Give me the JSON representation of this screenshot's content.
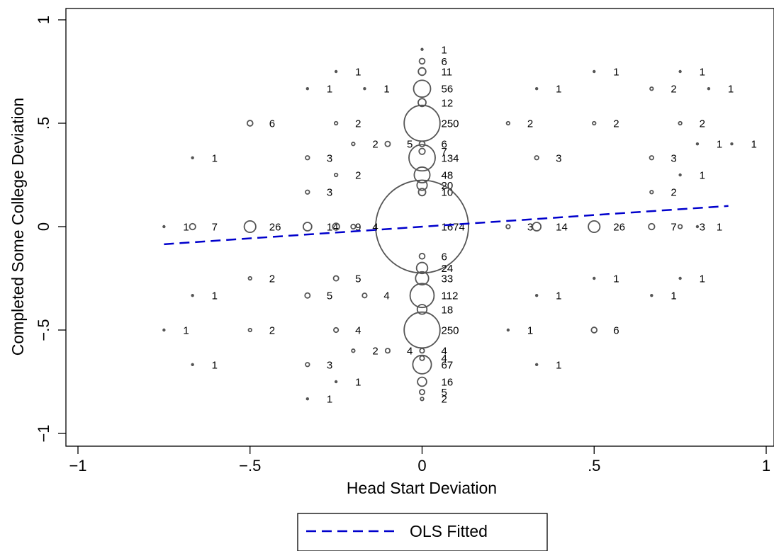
{
  "chart_data": {
    "type": "scatter",
    "xlabel": "Head Start Deviation",
    "ylabel": "Completed Some College Deviation",
    "xlim": [
      -1,
      1
    ],
    "ylim": [
      -1,
      1
    ],
    "x_ticks": [
      {
        "value": -1,
        "label": "−1"
      },
      {
        "value": -0.5,
        "label": "−.5"
      },
      {
        "value": 0,
        "label": "0"
      },
      {
        "value": 0.5,
        "label": ".5"
      },
      {
        "value": 1,
        "label": "1"
      }
    ],
    "y_ticks": [
      {
        "value": -1,
        "label": "−1"
      },
      {
        "value": -0.5,
        "label": "−.5"
      },
      {
        "value": 0,
        "label": "0"
      },
      {
        "value": 0.5,
        "label": ".5"
      },
      {
        "value": 1,
        "label": "1"
      }
    ],
    "grid": false,
    "legend": {
      "placement": "bottom-center",
      "entries": [
        {
          "label": "OLS Fitted",
          "style": "dashed",
          "color": "#0000cc"
        }
      ]
    },
    "marker_color": "#555555",
    "fit_line": {
      "name": "OLS Fitted",
      "color": "#0000cc",
      "x": [
        -0.75,
        0.89
      ],
      "y": [
        -0.085,
        0.1
      ]
    },
    "points": [
      {
        "x": 0,
        "y": 0.857,
        "n": 1,
        "label": "1"
      },
      {
        "x": 0,
        "y": 0.8,
        "n": 6,
        "label": "6"
      },
      {
        "x": 0,
        "y": 0.75,
        "n": 11,
        "label": "11"
      },
      {
        "x": 0,
        "y": 0.667,
        "n": 56,
        "label": "56"
      },
      {
        "x": 0,
        "y": 0.6,
        "n": 12,
        "label": "12"
      },
      {
        "x": 0,
        "y": 0.5,
        "n": 250,
        "label": "250"
      },
      {
        "x": 0,
        "y": 0.4,
        "n": 6,
        "label": "6"
      },
      {
        "x": 0,
        "y": 0.364,
        "n": 7,
        "label": "7"
      },
      {
        "x": 0,
        "y": 0.333,
        "n": 134,
        "label": "134"
      },
      {
        "x": 0,
        "y": 0.25,
        "n": 48,
        "label": "48"
      },
      {
        "x": 0,
        "y": 0.2,
        "n": 20,
        "label": "20"
      },
      {
        "x": 0,
        "y": 0.167,
        "n": 10,
        "label": "10"
      },
      {
        "x": 0,
        "y": 0,
        "n": 1674,
        "label": "1674"
      },
      {
        "x": 0,
        "y": -0.143,
        "n": 6,
        "label": "6"
      },
      {
        "x": 0,
        "y": -0.2,
        "n": 24,
        "label": "24"
      },
      {
        "x": 0,
        "y": -0.25,
        "n": 33,
        "label": "33"
      },
      {
        "x": 0,
        "y": -0.333,
        "n": 112,
        "label": "112"
      },
      {
        "x": 0,
        "y": -0.4,
        "n": 18,
        "label": "18"
      },
      {
        "x": 0,
        "y": -0.5,
        "n": 250,
        "label": "250"
      },
      {
        "x": 0,
        "y": -0.6,
        "n": 4,
        "label": "4"
      },
      {
        "x": 0,
        "y": -0.636,
        "n": 4,
        "label": "4"
      },
      {
        "x": 0,
        "y": -0.667,
        "n": 67,
        "label": "67"
      },
      {
        "x": 0,
        "y": -0.75,
        "n": 16,
        "label": "16"
      },
      {
        "x": 0,
        "y": -0.8,
        "n": 5,
        "label": "5"
      },
      {
        "x": 0,
        "y": -0.833,
        "n": 2,
        "label": "2"
      },
      {
        "x": -0.25,
        "y": 0.75,
        "n": 1,
        "label": "1"
      },
      {
        "x": -0.333,
        "y": 0.667,
        "n": 1,
        "label": "1"
      },
      {
        "x": -0.167,
        "y": 0.667,
        "n": 1,
        "label": "1"
      },
      {
        "x": -0.5,
        "y": 0.5,
        "n": 6,
        "label": "6"
      },
      {
        "x": -0.25,
        "y": 0.5,
        "n": 2,
        "label": "2"
      },
      {
        "x": -0.2,
        "y": 0.4,
        "n": 2,
        "label": "2"
      },
      {
        "x": -0.1,
        "y": 0.4,
        "n": 5,
        "label": "5"
      },
      {
        "x": -0.667,
        "y": 0.333,
        "n": 1,
        "label": "1"
      },
      {
        "x": -0.333,
        "y": 0.333,
        "n": 3,
        "label": "3"
      },
      {
        "x": -0.25,
        "y": 0.25,
        "n": 2,
        "label": "2"
      },
      {
        "x": -0.333,
        "y": 0.167,
        "n": 3,
        "label": "3"
      },
      {
        "x": -0.75,
        "y": 0,
        "n": 1,
        "label": "1"
      },
      {
        "x": -0.667,
        "y": 0,
        "n": 7,
        "label": "7"
      },
      {
        "x": -0.5,
        "y": 0,
        "n": 26,
        "label": "26"
      },
      {
        "x": -0.333,
        "y": 0,
        "n": 14,
        "label": "14"
      },
      {
        "x": -0.25,
        "y": 0,
        "n": 9,
        "label": "9"
      },
      {
        "x": -0.2,
        "y": 0,
        "n": 4,
        "label": "4"
      },
      {
        "x": -0.5,
        "y": -0.25,
        "n": 2,
        "label": "2"
      },
      {
        "x": -0.25,
        "y": -0.25,
        "n": 5,
        "label": "5"
      },
      {
        "x": -0.667,
        "y": -0.333,
        "n": 1,
        "label": "1"
      },
      {
        "x": -0.333,
        "y": -0.333,
        "n": 5,
        "label": "5"
      },
      {
        "x": -0.167,
        "y": -0.333,
        "n": 4,
        "label": "4"
      },
      {
        "x": -0.75,
        "y": -0.5,
        "n": 1,
        "label": "1"
      },
      {
        "x": -0.5,
        "y": -0.5,
        "n": 2,
        "label": "2"
      },
      {
        "x": -0.25,
        "y": -0.5,
        "n": 4,
        "label": "4"
      },
      {
        "x": -0.2,
        "y": -0.6,
        "n": 2,
        "label": "2"
      },
      {
        "x": -0.1,
        "y": -0.6,
        "n": 4,
        "label": "4"
      },
      {
        "x": -0.667,
        "y": -0.667,
        "n": 1,
        "label": "1"
      },
      {
        "x": -0.333,
        "y": -0.667,
        "n": 3,
        "label": "3"
      },
      {
        "x": -0.25,
        "y": -0.75,
        "n": 1,
        "label": "1"
      },
      {
        "x": -0.333,
        "y": -0.833,
        "n": 1,
        "label": "1"
      },
      {
        "x": 0.5,
        "y": 0.75,
        "n": 1,
        "label": "1"
      },
      {
        "x": 0.75,
        "y": 0.75,
        "n": 1,
        "label": "1"
      },
      {
        "x": 0.333,
        "y": 0.667,
        "n": 1,
        "label": "1"
      },
      {
        "x": 0.667,
        "y": 0.667,
        "n": 2,
        "label": "2"
      },
      {
        "x": 0.833,
        "y": 0.667,
        "n": 1,
        "label": "1"
      },
      {
        "x": 0.25,
        "y": 0.5,
        "n": 2,
        "label": "2"
      },
      {
        "x": 0.5,
        "y": 0.5,
        "n": 2,
        "label": "2"
      },
      {
        "x": 0.75,
        "y": 0.5,
        "n": 2,
        "label": "2"
      },
      {
        "x": 0.8,
        "y": 0.4,
        "n": 1,
        "label": "1"
      },
      {
        "x": 0.9,
        "y": 0.4,
        "n": 1,
        "label": "1"
      },
      {
        "x": 0.333,
        "y": 0.333,
        "n": 3,
        "label": "3"
      },
      {
        "x": 0.667,
        "y": 0.333,
        "n": 3,
        "label": "3"
      },
      {
        "x": 0.75,
        "y": 0.25,
        "n": 1,
        "label": "1"
      },
      {
        "x": 0.667,
        "y": 0.167,
        "n": 2,
        "label": "2"
      },
      {
        "x": 0.25,
        "y": 0,
        "n": 3,
        "label": "3"
      },
      {
        "x": 0.333,
        "y": 0,
        "n": 14,
        "label": "14"
      },
      {
        "x": 0.5,
        "y": 0,
        "n": 26,
        "label": "26"
      },
      {
        "x": 0.667,
        "y": 0,
        "n": 7,
        "label": "7"
      },
      {
        "x": 0.75,
        "y": 0,
        "n": 3,
        "label": "3"
      },
      {
        "x": 0.8,
        "y": 0,
        "n": 1,
        "label": "1"
      },
      {
        "x": 0.5,
        "y": -0.25,
        "n": 1,
        "label": "1"
      },
      {
        "x": 0.75,
        "y": -0.25,
        "n": 1,
        "label": "1"
      },
      {
        "x": 0.333,
        "y": -0.333,
        "n": 1,
        "label": "1"
      },
      {
        "x": 0.667,
        "y": -0.333,
        "n": 1,
        "label": "1"
      },
      {
        "x": 0.25,
        "y": -0.5,
        "n": 1,
        "label": "1"
      },
      {
        "x": 0.5,
        "y": -0.5,
        "n": 6,
        "label": "6"
      },
      {
        "x": 0.333,
        "y": -0.667,
        "n": 1,
        "label": "1"
      }
    ]
  }
}
